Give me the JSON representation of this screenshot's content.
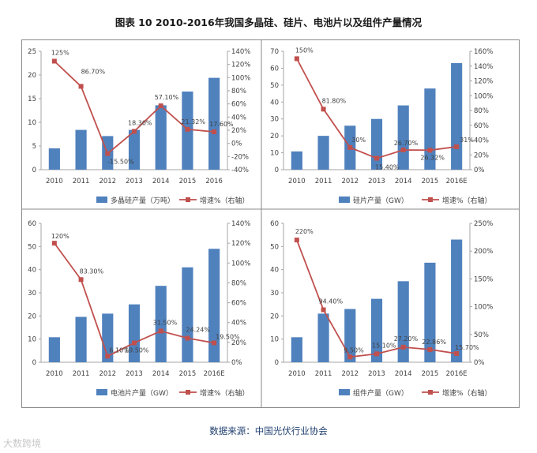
{
  "figure_title": "图表 10  2010-2016年我国多晶硅、硅片、电池片以及组件产量情况",
  "source_note": "数据来源：中国光伏行业协会",
  "watermark": "大数跨境",
  "colors": {
    "bar": "#4f81bd",
    "line": "#c0504d",
    "axis": "#a6a6a6",
    "grid": "#d9d9d9",
    "text": "#404040"
  },
  "chart_data": [
    {
      "type": "bar",
      "categories": [
        "2010",
        "2011",
        "2012",
        "2013",
        "2014",
        "2015",
        "2016"
      ],
      "series": [
        {
          "name": "多晶硅产量（万吨）",
          "axis": "left",
          "values": [
            4.5,
            8.4,
            7.1,
            8.4,
            13.6,
            16.5,
            19.4
          ]
        },
        {
          "name": "增速%（右轴）",
          "type": "line",
          "axis": "right",
          "values": [
            125,
            86.7,
            -15.5,
            18.3,
            57.1,
            21.32,
            17.6
          ]
        }
      ],
      "data_labels": [
        "125%",
        "86.70%",
        "-15.50%",
        "18.30%",
        "57.10%",
        "21.32%",
        "17.60%"
      ],
      "ylim": [
        0,
        25
      ],
      "yticks": [
        0,
        5,
        10,
        15,
        20,
        25
      ],
      "y2lim": [
        -40,
        140
      ],
      "y2ticks": [
        -40,
        -20,
        0,
        20,
        40,
        60,
        80,
        100,
        120,
        140
      ],
      "y2_suffix": "%",
      "grid": false,
      "legend": "bottom"
    },
    {
      "type": "bar",
      "categories": [
        "2010",
        "2011",
        "2012",
        "2013",
        "2014",
        "2015",
        "2016E"
      ],
      "series": [
        {
          "name": "硅片产量（GW）",
          "axis": "left",
          "values": [
            10.8,
            20,
            26,
            30,
            38,
            48,
            63
          ]
        },
        {
          "name": "增速%（右轴）",
          "type": "line",
          "axis": "right",
          "values": [
            150,
            81.8,
            30,
            15.4,
            26.7,
            26.32,
            31
          ]
        }
      ],
      "data_labels": [
        "150%",
        "81.80%",
        "30%",
        "15.40%",
        "26.70%",
        "26.32%",
        "31%"
      ],
      "ylim": [
        0,
        70
      ],
      "yticks": [
        0,
        10,
        20,
        30,
        40,
        50,
        60,
        70
      ],
      "y2lim": [
        0,
        160
      ],
      "y2ticks": [
        0,
        20,
        40,
        60,
        80,
        100,
        120,
        140,
        160
      ],
      "y2_suffix": "%",
      "grid": false,
      "legend": "bottom"
    },
    {
      "type": "bar",
      "categories": [
        "2010",
        "2011",
        "2012",
        "2013",
        "2014",
        "2015",
        "2016E"
      ],
      "series": [
        {
          "name": "电池片产量（GW）",
          "axis": "left",
          "values": [
            10.8,
            19.6,
            21,
            25,
            33,
            41,
            49
          ]
        },
        {
          "name": "增速%（右轴）",
          "type": "line",
          "axis": "right",
          "values": [
            120,
            83.3,
            6.1,
            19.5,
            31.5,
            24.24,
            19.5
          ]
        }
      ],
      "data_labels": [
        "120%",
        "83.30%",
        "6.10%",
        "19.50%",
        "31.50%",
        "24.24%",
        "19.50%"
      ],
      "ylim": [
        0,
        60
      ],
      "yticks": [
        0,
        10,
        20,
        30,
        40,
        50,
        60
      ],
      "y2lim": [
        0,
        140
      ],
      "y2ticks": [
        0,
        20,
        40,
        60,
        80,
        100,
        120,
        140
      ],
      "y2_suffix": "%",
      "grid": false,
      "legend": "bottom"
    },
    {
      "type": "bar",
      "categories": [
        "2010",
        "2011",
        "2012",
        "2013",
        "2014",
        "2015",
        "2016E"
      ],
      "series": [
        {
          "name": "组件产量（GW）",
          "axis": "left",
          "values": [
            10.8,
            21,
            23,
            27.4,
            35,
            43,
            53
          ]
        },
        {
          "name": "增速%（右轴）",
          "type": "line",
          "axis": "right",
          "values": [
            220,
            94.4,
            9.5,
            15.1,
            27.2,
            22.86,
            15.7
          ]
        }
      ],
      "data_labels": [
        "220%",
        "94.40%",
        "9.50%",
        "15.10%",
        "27.20%",
        "22.86%",
        "15.70%"
      ],
      "ylim": [
        0,
        60
      ],
      "yticks": [
        0,
        10,
        20,
        30,
        40,
        50,
        60
      ],
      "y2lim": [
        0,
        250
      ],
      "y2ticks": [
        0,
        50,
        100,
        150,
        200,
        250
      ],
      "y2_suffix": "%",
      "grid": false,
      "legend": "bottom"
    }
  ]
}
